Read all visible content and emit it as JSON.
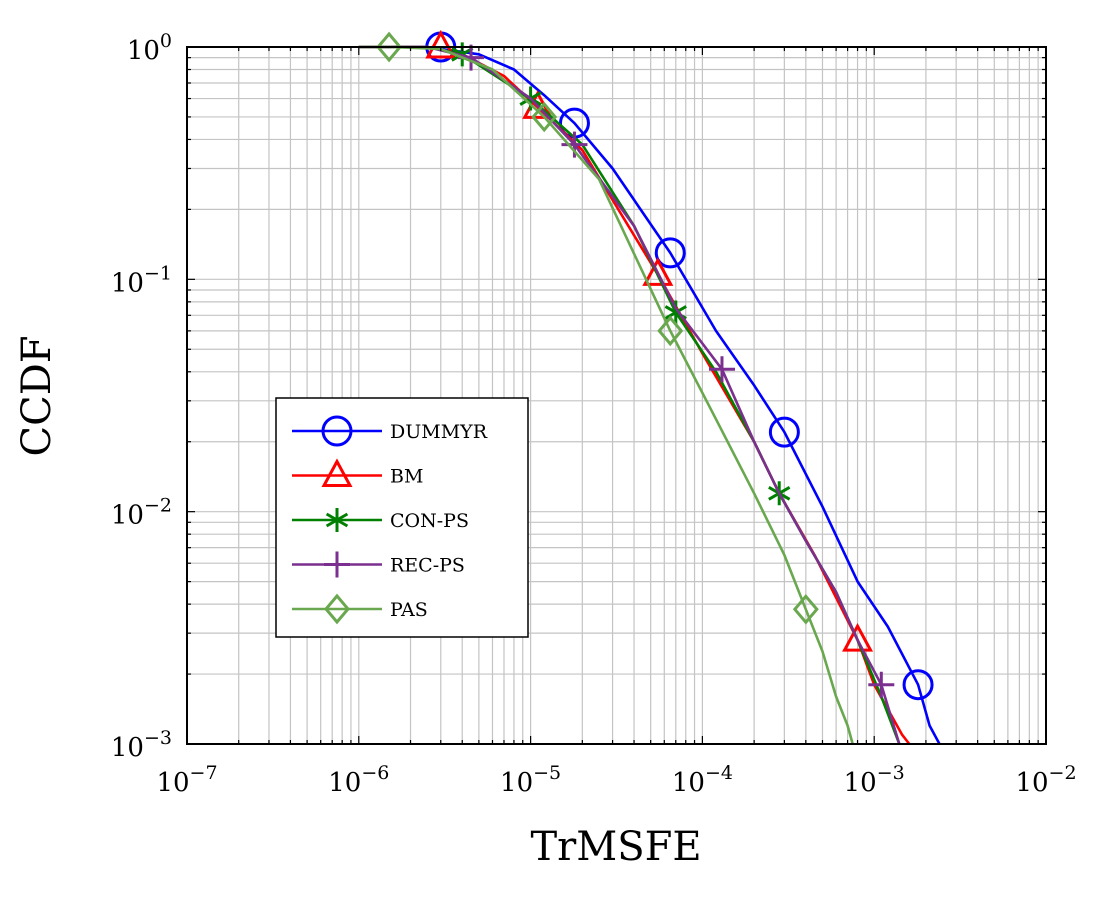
{
  "chart_data": {
    "type": "line",
    "title": "",
    "xlabel": "TrMSFE",
    "ylabel": "CCDF",
    "xscale": "log",
    "yscale": "log",
    "xlim": [
      1e-07,
      0.01
    ],
    "ylim": [
      0.001,
      1
    ],
    "grid": true,
    "legend_position": "middle-left",
    "x_ticks": [
      {
        "value": 1e-07,
        "base": "10",
        "exp": "−7"
      },
      {
        "value": 1e-06,
        "base": "10",
        "exp": "−6"
      },
      {
        "value": 1e-05,
        "base": "10",
        "exp": "−5"
      },
      {
        "value": 0.0001,
        "base": "10",
        "exp": "−4"
      },
      {
        "value": 0.001,
        "base": "10",
        "exp": "−3"
      },
      {
        "value": 0.01,
        "base": "10",
        "exp": "−2"
      }
    ],
    "y_ticks": [
      {
        "value": 1,
        "base": "10",
        "exp": "0"
      },
      {
        "value": 0.1,
        "base": "10",
        "exp": "−1"
      },
      {
        "value": 0.01,
        "base": "10",
        "exp": "−2"
      },
      {
        "value": 0.001,
        "base": "10",
        "exp": "−3"
      }
    ],
    "series": [
      {
        "name": "DUMMYR",
        "color": "#0000ff",
        "marker": "circle",
        "x": [
          1e-06,
          2.5e-06,
          5e-06,
          8e-06,
          1.2e-05,
          1.8e-05,
          3e-05,
          6.5e-05,
          0.00012,
          0.0002,
          0.0003,
          0.0005,
          0.0008,
          0.0012,
          0.0018,
          0.0021,
          0.0024
        ],
        "y": [
          1.0,
          1.0,
          0.93,
          0.8,
          0.62,
          0.47,
          0.3,
          0.13,
          0.06,
          0.035,
          0.022,
          0.0105,
          0.005,
          0.0032,
          0.0018,
          0.0012,
          0.001
        ],
        "markers_x": [
          3e-06,
          1.8e-05,
          6.5e-05,
          0.0003,
          0.0018
        ],
        "markers_y": [
          1.0,
          0.47,
          0.13,
          0.022,
          0.0018
        ]
      },
      {
        "name": "BM",
        "color": "#ff0000",
        "marker": "triangle",
        "x": [
          1e-06,
          2.5e-06,
          4e-06,
          7e-06,
          1.1e-05,
          2e-05,
          5.5e-05,
          0.0001,
          0.0002,
          0.00028,
          0.00045,
          0.0008,
          0.001,
          0.00145,
          0.0016
        ],
        "y": [
          1.0,
          1.0,
          0.93,
          0.75,
          0.55,
          0.36,
          0.105,
          0.048,
          0.02,
          0.012,
          0.0065,
          0.0028,
          0.0018,
          0.0011,
          0.001
        ],
        "markers_x": [
          3e-06,
          1.1e-05,
          5.5e-05,
          0.0008
        ],
        "markers_y": [
          1.0,
          0.55,
          0.105,
          0.0028
        ]
      },
      {
        "name": "CON-PS",
        "color": "#008000",
        "marker": "asterisk",
        "x": [
          1e-06,
          2.5e-06,
          4e-06,
          1e-05,
          2e-05,
          4e-05,
          7e-05,
          0.00012,
          0.0002,
          0.00028,
          0.0004,
          0.0006,
          0.0008,
          0.0011,
          0.0014
        ],
        "y": [
          1.0,
          1.0,
          0.93,
          0.6,
          0.38,
          0.17,
          0.072,
          0.04,
          0.02,
          0.012,
          0.0075,
          0.0045,
          0.0028,
          0.0016,
          0.001
        ],
        "markers_x": [
          4e-06,
          1e-05,
          7e-05,
          0.00028
        ],
        "markers_y": [
          0.93,
          0.6,
          0.072,
          0.012
        ]
      },
      {
        "name": "REC-PS",
        "color": "#7b2f8e",
        "marker": "plus",
        "x": [
          1e-06,
          2.5e-06,
          4.5e-06,
          1e-05,
          1.8e-05,
          4e-05,
          7e-05,
          0.00013,
          0.0002,
          0.00028,
          0.0004,
          0.0006,
          0.0008,
          0.0011,
          0.0014
        ],
        "y": [
          1.0,
          1.0,
          0.9,
          0.6,
          0.38,
          0.17,
          0.075,
          0.041,
          0.02,
          0.012,
          0.0075,
          0.0045,
          0.0028,
          0.0018,
          0.001
        ],
        "markers_x": [
          4.5e-06,
          1.8e-05,
          0.00013,
          0.0011
        ],
        "markers_y": [
          0.9,
          0.38,
          0.041,
          0.0018
        ]
      },
      {
        "name": "PAS",
        "color": "#6aa84f",
        "marker": "diamond",
        "x": [
          1e-06,
          1.5e-06,
          3e-06,
          6e-06,
          1.2e-05,
          2.5e-05,
          6.5e-05,
          0.00012,
          0.0002,
          0.0003,
          0.0004,
          0.0005,
          0.0006,
          0.0007,
          0.00075
        ],
        "y": [
          1.0,
          1.0,
          0.98,
          0.8,
          0.5,
          0.27,
          0.06,
          0.025,
          0.012,
          0.0065,
          0.0038,
          0.0025,
          0.0016,
          0.0012,
          0.001
        ],
        "markers_x": [
          1.5e-06,
          1.2e-05,
          6.5e-05,
          0.0004
        ],
        "markers_y": [
          1.0,
          0.5,
          0.06,
          0.0038
        ]
      }
    ]
  }
}
